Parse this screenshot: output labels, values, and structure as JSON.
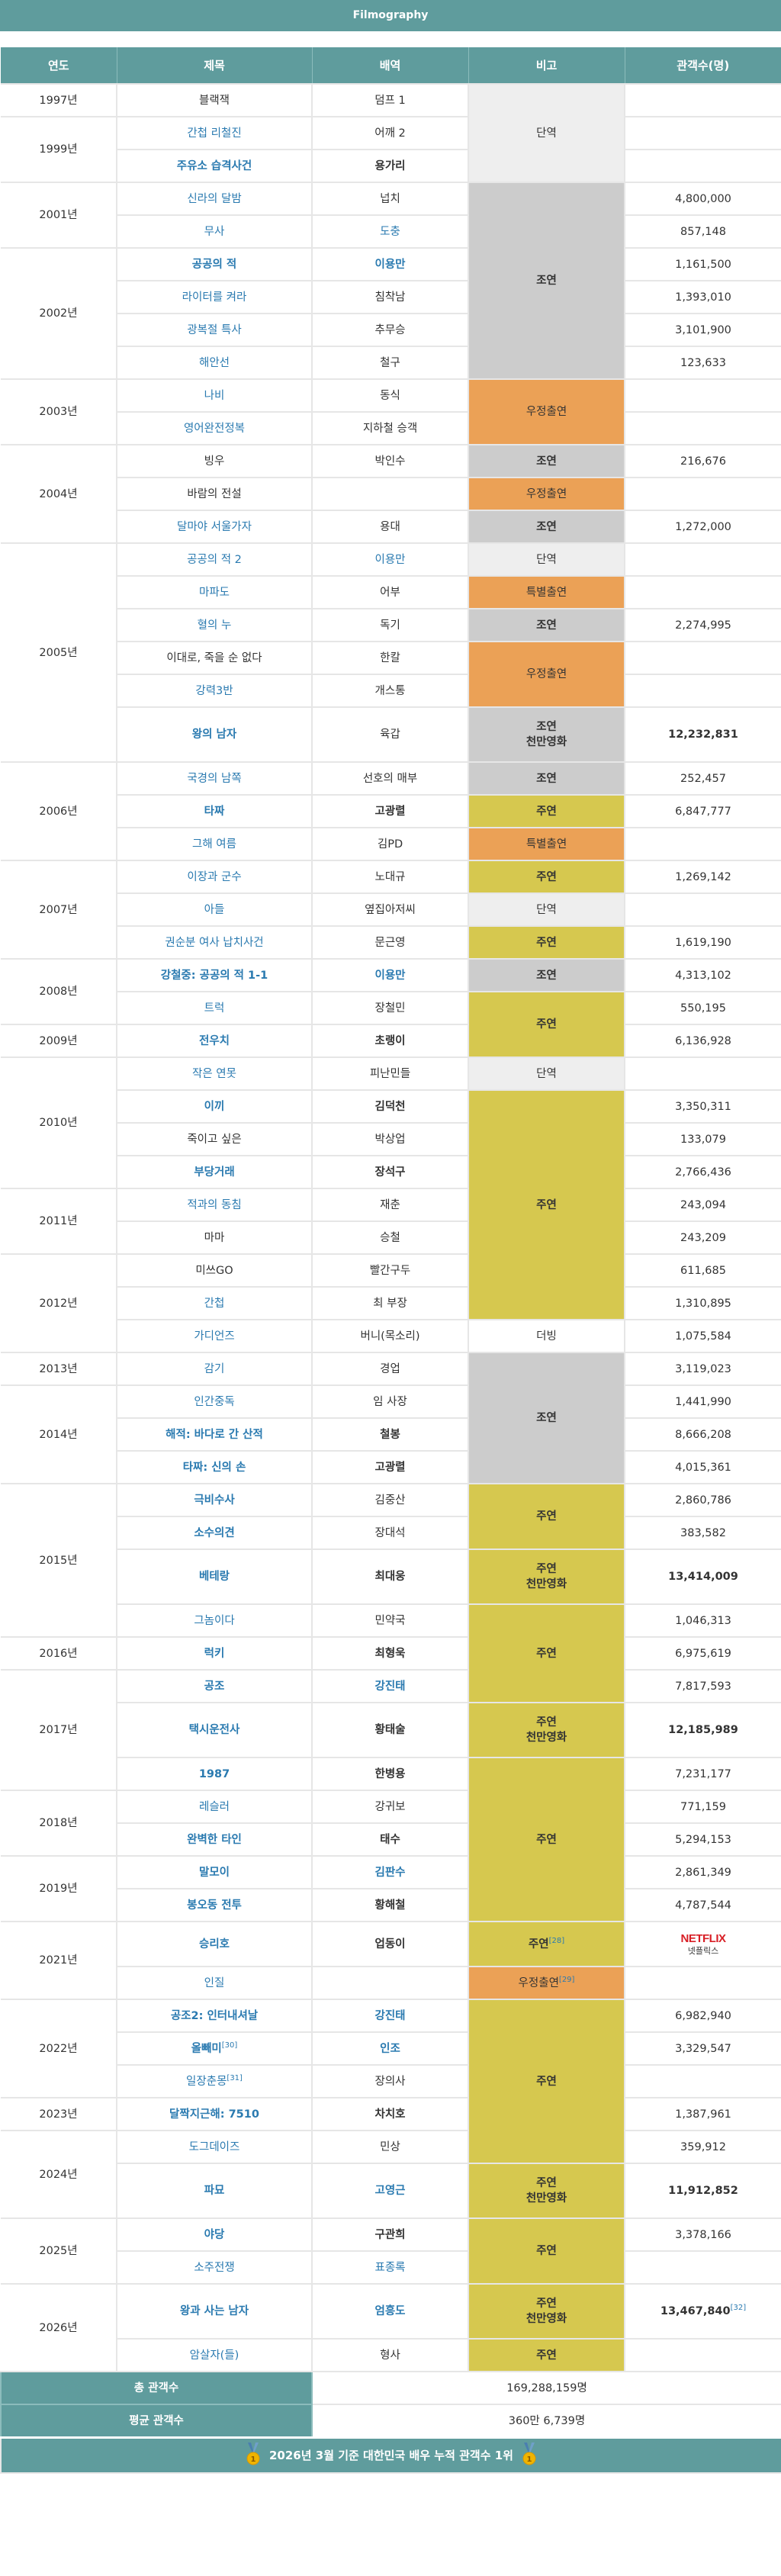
{
  "page_title": "Filmography",
  "headers": [
    "연도",
    "제목",
    "배역",
    "비고",
    "관객수(명)"
  ],
  "note_colors": {
    "단역": "#eeeeee",
    "조연": "#cccccc",
    "주연": "#d6c84f",
    "우정출연": "#eba156",
    "특별출연": "#eba156",
    "더빙": "#ffffff"
  },
  "years": [
    {
      "year": "1997년",
      "films": [
        {
          "title": "블랙잭",
          "title_style": "plain",
          "role": "덤프 1",
          "role_style": "plain",
          "note": "단역",
          "audience": ""
        }
      ]
    },
    {
      "year": "1999년",
      "films": [
        {
          "title": "간첩 리철진",
          "title_style": "link",
          "role": "어깨 2",
          "role_style": "plain",
          "note": "단역",
          "audience": ""
        },
        {
          "title": "주유소 습격사건",
          "title_style": "link-bold",
          "role": "용가리",
          "role_style": "bold",
          "note": "단역",
          "audience": ""
        }
      ]
    },
    {
      "year": "2001년",
      "films": [
        {
          "title": "신라의 달밤",
          "title_style": "link",
          "role": "넙치",
          "role_style": "plain",
          "note": "조연",
          "audience": "4,800,000"
        },
        {
          "title": "무사",
          "title_style": "link",
          "role": "도충",
          "role_style": "link",
          "note": "조연",
          "audience": "857,148"
        }
      ]
    },
    {
      "year": "2002년",
      "films": [
        {
          "title": "공공의 적",
          "title_style": "link-bold",
          "role": "이용만",
          "role_style": "link-bold",
          "note": "조연",
          "audience": "1,161,500"
        },
        {
          "title": "라이터를 켜라",
          "title_style": "link",
          "role": "침착남",
          "role_style": "plain",
          "note": "조연",
          "audience": "1,393,010"
        },
        {
          "title": "광복절 특사",
          "title_style": "link",
          "role": "추무승",
          "role_style": "plain",
          "note": "조연",
          "audience": "3,101,900"
        },
        {
          "title": "해안선",
          "title_style": "link",
          "role": "철구",
          "role_style": "plain",
          "note": "조연",
          "audience": "123,633"
        }
      ]
    },
    {
      "year": "2003년",
      "films": [
        {
          "title": "나비",
          "title_style": "link",
          "role": "동식",
          "role_style": "plain",
          "note": "우정출연",
          "audience": ""
        },
        {
          "title": "영어완전정복",
          "title_style": "link",
          "role": "지하철 승객",
          "role_style": "plain",
          "note": "우정출연",
          "audience": ""
        }
      ]
    },
    {
      "year": "2004년",
      "films": [
        {
          "title": "빙우",
          "title_style": "plain",
          "role": "박인수",
          "role_style": "plain",
          "note": "조연",
          "audience": "216,676"
        },
        {
          "title": "바람의 전설",
          "title_style": "plain",
          "role": "",
          "role_style": "plain",
          "note": "우정출연",
          "audience": ""
        },
        {
          "title": "달마야 서울가자",
          "title_style": "link",
          "role": "용대",
          "role_style": "plain",
          "note": "조연",
          "audience": "1,272,000"
        }
      ]
    },
    {
      "year": "2005년",
      "films": [
        {
          "title": "공공의 적 2",
          "title_style": "link",
          "role": "이용만",
          "role_style": "link",
          "note": "단역",
          "audience": ""
        },
        {
          "title": "마파도",
          "title_style": "link",
          "role": "어부",
          "role_style": "plain",
          "note": "특별출연",
          "audience": ""
        },
        {
          "title": "혈의 누",
          "title_style": "link",
          "role": "독기",
          "role_style": "plain",
          "note": "조연",
          "audience": "2,274,995"
        },
        {
          "title": "이대로, 죽을 순 없다",
          "title_style": "plain",
          "role": "한칼",
          "role_style": "plain",
          "note": "우정출연",
          "audience": ""
        },
        {
          "title": "강력3반",
          "title_style": "link",
          "role": "개스통",
          "role_style": "plain",
          "note": "우정출연",
          "audience": ""
        },
        {
          "title": "왕의 남자",
          "title_style": "link-bold",
          "role": "육갑",
          "role_style": "plain",
          "note": "조연",
          "note_sub": "천만영화",
          "audience": "12,232,831",
          "audience_bold": true
        }
      ]
    },
    {
      "year": "2006년",
      "films": [
        {
          "title": "국경의 남쪽",
          "title_style": "link",
          "role": "선호의 매부",
          "role_style": "plain",
          "note": "조연",
          "audience": "252,457"
        },
        {
          "title": "타짜",
          "title_style": "link-bold",
          "role": "고광렬",
          "role_style": "bold",
          "note": "주연",
          "audience": "6,847,777"
        },
        {
          "title": "그해 여름",
          "title_style": "link",
          "role": "김PD",
          "role_style": "plain",
          "note": "특별출연",
          "audience": ""
        }
      ]
    },
    {
      "year": "2007년",
      "films": [
        {
          "title": "이장과 군수",
          "title_style": "link",
          "role": "노대규",
          "role_style": "plain",
          "note": "주연",
          "audience": "1,269,142"
        },
        {
          "title": "아들",
          "title_style": "link",
          "role": "옆집아저씨",
          "role_style": "plain",
          "note": "단역",
          "audience": ""
        },
        {
          "title": "권순분 여사 납치사건",
          "title_style": "link",
          "role": "문근영",
          "role_style": "plain",
          "note": "주연",
          "audience": "1,619,190"
        }
      ]
    },
    {
      "year": "2008년",
      "films": [
        {
          "title": "강철중: 공공의 적 1-1",
          "title_style": "link-bold",
          "role": "이용만",
          "role_style": "link-bold",
          "note": "조연",
          "audience": "4,313,102"
        },
        {
          "title": "트럭",
          "title_style": "link",
          "role": "장철민",
          "role_style": "plain",
          "note": "주연",
          "audience": "550,195"
        }
      ]
    },
    {
      "year": "2009년",
      "films": [
        {
          "title": "전우치",
          "title_style": "link-bold",
          "role": "초랭이",
          "role_style": "bold",
          "note": "주연",
          "audience": "6,136,928"
        }
      ]
    },
    {
      "year": "2010년",
      "films": [
        {
          "title": "작은 연못",
          "title_style": "link",
          "role": "피난민들",
          "role_style": "plain",
          "note": "단역",
          "audience": ""
        },
        {
          "title": "이끼",
          "title_style": "link-bold",
          "role": "김덕천",
          "role_style": "bold",
          "note": "주연",
          "audience": "3,350,311"
        },
        {
          "title": "죽이고 싶은",
          "title_style": "plain",
          "role": "박상업",
          "role_style": "plain",
          "note": "주연",
          "audience": "133,079"
        },
        {
          "title": "부당거래",
          "title_style": "link-bold",
          "role": "장석구",
          "role_style": "bold",
          "note": "주연",
          "audience": "2,766,436"
        }
      ]
    },
    {
      "year": "2011년",
      "films": [
        {
          "title": "적과의 동침",
          "title_style": "link",
          "role": "재춘",
          "role_style": "plain",
          "note": "주연",
          "audience": "243,094"
        },
        {
          "title": "마마",
          "title_style": "plain",
          "role": "승철",
          "role_style": "plain",
          "note": "주연",
          "audience": "243,209"
        }
      ]
    },
    {
      "year": "2012년",
      "films": [
        {
          "title": "미쓰GO",
          "title_style": "plain",
          "role": "빨간구두",
          "role_style": "plain",
          "note": "주연",
          "audience": "611,685"
        },
        {
          "title": "간첩",
          "title_style": "link",
          "role": "최 부장",
          "role_style": "plain",
          "note": "주연",
          "audience": "1,310,895"
        },
        {
          "title": "가디언즈",
          "title_style": "link",
          "role": "버니(목소리)",
          "role_style": "plain",
          "note": "더빙",
          "audience": "1,075,584"
        }
      ]
    },
    {
      "year": "2013년",
      "films": [
        {
          "title": "감기",
          "title_style": "link",
          "role": "경업",
          "role_style": "plain",
          "note": "조연",
          "audience": "3,119,023"
        }
      ]
    },
    {
      "year": "2014년",
      "films": [
        {
          "title": "인간중독",
          "title_style": "link",
          "role": "임 사장",
          "role_style": "plain",
          "note": "조연",
          "audience": "1,441,990"
        },
        {
          "title": "해적: 바다로 간 산적",
          "title_style": "link-bold",
          "role": "철봉",
          "role_style": "bold",
          "note": "조연",
          "audience": "8,666,208"
        },
        {
          "title": "타짜: 신의 손",
          "title_style": "link-bold",
          "role": "고광렬",
          "role_style": "bold",
          "note": "조연",
          "audience": "4,015,361"
        }
      ]
    },
    {
      "year": "2015년",
      "films": [
        {
          "title": "극비수사",
          "title_style": "link-bold",
          "role": "김중산",
          "role_style": "plain",
          "note": "주연",
          "audience": "2,860,786"
        },
        {
          "title": "소수의견",
          "title_style": "link-bold",
          "role": "장대석",
          "role_style": "plain",
          "note": "주연",
          "audience": "383,582"
        },
        {
          "title": "베테랑",
          "title_style": "link-bold",
          "role": "최대웅",
          "role_style": "bold",
          "note": "주연",
          "note_sub": "천만영화",
          "audience": "13,414,009",
          "audience_bold": true
        },
        {
          "title": "그놈이다",
          "title_style": "link",
          "role": "민약국",
          "role_style": "plain",
          "note": "주연",
          "audience": "1,046,313"
        }
      ]
    },
    {
      "year": "2016년",
      "films": [
        {
          "title": "럭키",
          "title_style": "link-bold",
          "role": "최형욱",
          "role_style": "bold",
          "note": "주연",
          "audience": "6,975,619"
        }
      ]
    },
    {
      "year": "2017년",
      "films": [
        {
          "title": "공조",
          "title_style": "link-bold",
          "role": "강진태",
          "role_style": "link-bold",
          "note": "주연",
          "audience": "7,817,593"
        },
        {
          "title": "택시운전사",
          "title_style": "link-bold",
          "role": "황태술",
          "role_style": "bold",
          "note": "주연",
          "note_sub": "천만영화",
          "audience": "12,185,989",
          "audience_bold": true
        },
        {
          "title": "1987",
          "title_style": "link-bold",
          "role": "한병용",
          "role_style": "bold",
          "note": "주연",
          "audience": "7,231,177"
        }
      ]
    },
    {
      "year": "2018년",
      "films": [
        {
          "title": "레슬러",
          "title_style": "link",
          "role": "강귀보",
          "role_style": "plain",
          "note": "주연",
          "audience": "771,159"
        },
        {
          "title": "완벽한 타인",
          "title_style": "link-bold",
          "role": "태수",
          "role_style": "bold",
          "note": "주연",
          "audience": "5,294,153"
        }
      ]
    },
    {
      "year": "2019년",
      "films": [
        {
          "title": "말모이",
          "title_style": "link-bold",
          "role": "김판수",
          "role_style": "link-bold",
          "note": "주연",
          "audience": "2,861,349"
        },
        {
          "title": "봉오동 전투",
          "title_style": "link-bold",
          "role": "황해철",
          "role_style": "bold",
          "note": "주연",
          "audience": "4,787,544"
        }
      ]
    },
    {
      "year": "2021년",
      "films": [
        {
          "title": "승리호",
          "title_style": "link-bold",
          "role": "업동이",
          "role_style": "bold",
          "note": "주연",
          "note_ref": "[28]",
          "audience": "",
          "audience_logo": "NETFLIX",
          "audience_logo_sub": "넷플릭스"
        },
        {
          "title": "인질",
          "title_style": "link",
          "role": "",
          "role_style": "plain",
          "note": "우정출연",
          "note_ref": "[29]",
          "audience": ""
        }
      ]
    },
    {
      "year": "2022년",
      "films": [
        {
          "title": "공조2: 인터내셔날",
          "title_style": "link-bold",
          "role": "강진태",
          "role_style": "link-bold",
          "note": "주연",
          "audience": "6,982,940"
        },
        {
          "title": "올빼미",
          "title_ref": "[30]",
          "title_style": "link-bold",
          "role": "인조",
          "role_style": "link-bold",
          "note": "주연",
          "audience": "3,329,547"
        },
        {
          "title": "일장춘몽",
          "title_ref": "[31]",
          "title_style": "link",
          "role": "장의사",
          "role_style": "plain",
          "note": "주연",
          "audience": ""
        }
      ]
    },
    {
      "year": "2023년",
      "films": [
        {
          "title": "달짝지근해: 7510",
          "title_style": "link-bold",
          "role": "차치호",
          "role_style": "bold",
          "note": "주연",
          "audience": "1,387,961"
        }
      ]
    },
    {
      "year": "2024년",
      "films": [
        {
          "title": "도그데이즈",
          "title_style": "link",
          "role": "민상",
          "role_style": "plain",
          "note": "주연",
          "audience": "359,912"
        },
        {
          "title": "파묘",
          "title_style": "link-bold",
          "role": "고영근",
          "role_style": "link-bold",
          "note": "주연",
          "note_sub": "천만영화",
          "audience": "11,912,852",
          "audience_bold": true
        }
      ]
    },
    {
      "year": "2025년",
      "films": [
        {
          "title": "야당",
          "title_style": "link-bold",
          "role": "구관희",
          "role_style": "bold",
          "note": "주연",
          "audience": "3,378,166"
        },
        {
          "title": "소주전쟁",
          "title_style": "link",
          "role": "표종록",
          "role_style": "link",
          "note": "주연",
          "audience": ""
        }
      ]
    },
    {
      "year": "2026년",
      "films": [
        {
          "title": "왕과 사는 남자",
          "title_style": "link-bold",
          "role": "엄흥도",
          "role_style": "link-bold",
          "note": "주연",
          "note_sub": "천만영화",
          "audience": "13,467,840",
          "audience_ref": "[32]",
          "audience_bold": true
        },
        {
          "title": "암살자(들)",
          "title_style": "link",
          "role": "형사",
          "role_style": "plain",
          "note": "주연",
          "note_break": true,
          "audience": ""
        }
      ]
    }
  ],
  "summary": {
    "total_label": "총 관객수",
    "total_value": "169,288,159명",
    "average_label": "평균 관객수",
    "average_value": "360만 6,739명",
    "banner": "2026년 3월 기준 대한민국 배우 누적 관객수 1위",
    "medal_number": "1"
  }
}
